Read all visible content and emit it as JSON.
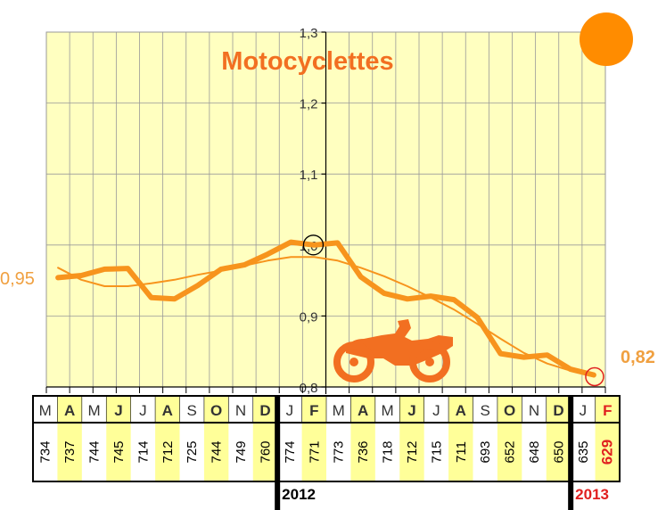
{
  "chart_data": {
    "type": "line",
    "title": "Motocyclettes",
    "xlabel": "",
    "ylabel": "",
    "ylim": [
      0.8,
      1.3
    ],
    "yticks": [
      "0,8",
      "0,9",
      "1,0",
      "1,1",
      "1,2",
      "1,3"
    ],
    "grid": true,
    "months": [
      "M",
      "A",
      "M",
      "J",
      "J",
      "A",
      "S",
      "O",
      "N",
      "D",
      "J",
      "F",
      "M",
      "A",
      "M",
      "J",
      "J",
      "A",
      "S",
      "O",
      "N",
      "D",
      "J",
      "F"
    ],
    "counts": [
      "734",
      "737",
      "744",
      "745",
      "714",
      "712",
      "725",
      "744",
      "749",
      "760",
      "774",
      "771",
      "773",
      "736",
      "718",
      "712",
      "715",
      "711",
      "693",
      "652",
      "648",
      "650",
      "635",
      "629"
    ],
    "years": [
      "2012",
      "2013"
    ],
    "start_label": "0,95",
    "end_label": "0,82",
    "series": [
      {
        "values": [
          0.954,
          0.957,
          0.966,
          0.967,
          0.926,
          0.924,
          0.943,
          0.966,
          0.972,
          0.987,
          1.004,
          1.0,
          1.003,
          0.955,
          0.932,
          0.924,
          0.928,
          0.923,
          0.898,
          0.847,
          0.842,
          0.845,
          0.825,
          0.817
        ]
      },
      {
        "values": [
          0.968,
          0.951,
          0.942,
          0.942,
          0.946,
          0.951,
          0.958,
          0.964,
          0.971,
          0.978,
          0.983,
          0.983,
          0.978,
          0.968,
          0.956,
          0.942,
          0.926,
          0.909,
          0.889,
          0.868,
          0.848,
          0.833,
          0.823,
          0.818
        ]
      }
    ]
  },
  "colors": {
    "plot_bg": "#FFFFC0",
    "line": "#F7941D",
    "title": "#F26F21",
    "highlight_col": "#FFFF99",
    "accent_red": "#E02020",
    "sun": "#FF8C00",
    "moto": "#F26F21"
  },
  "icons": [
    "sun-icon",
    "motorcycle-icon"
  ]
}
